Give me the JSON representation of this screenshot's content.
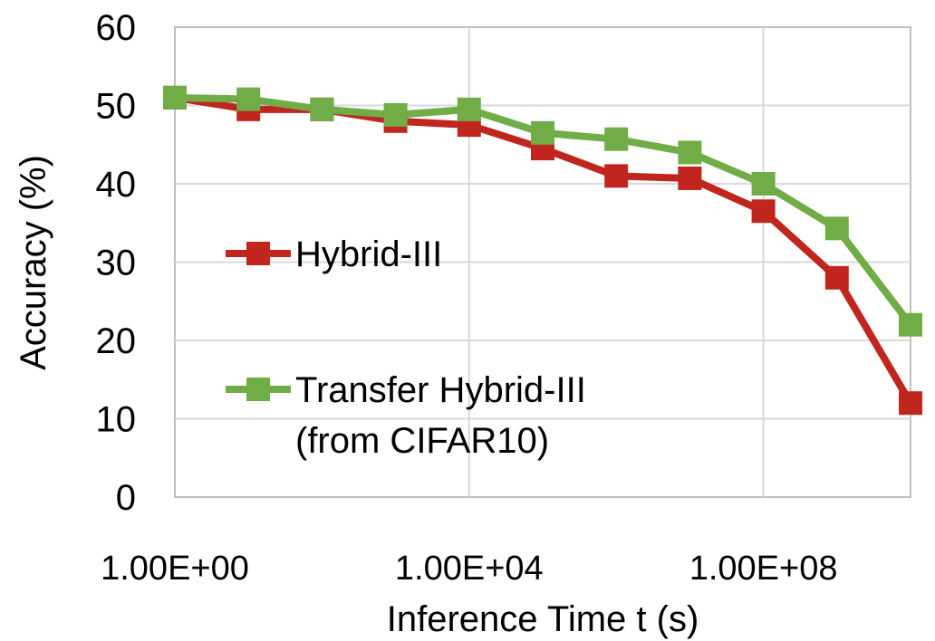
{
  "chart_data": {
    "type": "line",
    "title": "",
    "xlabel": "Inference Time t (s)",
    "ylabel": "Accuracy (%)",
    "x_scale": "log",
    "xlim": [
      1,
      10000000000
    ],
    "ylim": [
      0,
      60
    ],
    "y_ticks": [
      "0",
      "10",
      "20",
      "30",
      "40",
      "50",
      "60"
    ],
    "x_ticks": [
      "1.00E+00",
      "1.00E+04",
      "1.00E+08"
    ],
    "grid": true,
    "legend_position": "inside-left",
    "x": [
      1,
      10,
      100,
      1000,
      10000,
      100000,
      1000000,
      10000000,
      100000000,
      1000000000,
      10000000000
    ],
    "series": [
      {
        "name": "Hybrid-III",
        "color": "#c0261e",
        "marker": "square",
        "values": [
          51.0,
          49.5,
          49.5,
          48.0,
          47.5,
          44.5,
          41.0,
          40.7,
          36.5,
          28.0,
          12.0
        ]
      },
      {
        "name": "Transfer Hybrid-III (from CIFAR10)",
        "legend_lines": [
          "Transfer Hybrid-III",
          "(from CIFAR10)"
        ],
        "color": "#70ad47",
        "marker": "square",
        "values": [
          51.0,
          50.8,
          49.5,
          48.8,
          49.5,
          46.5,
          45.7,
          44.0,
          40.0,
          34.3,
          22.0
        ]
      }
    ]
  }
}
